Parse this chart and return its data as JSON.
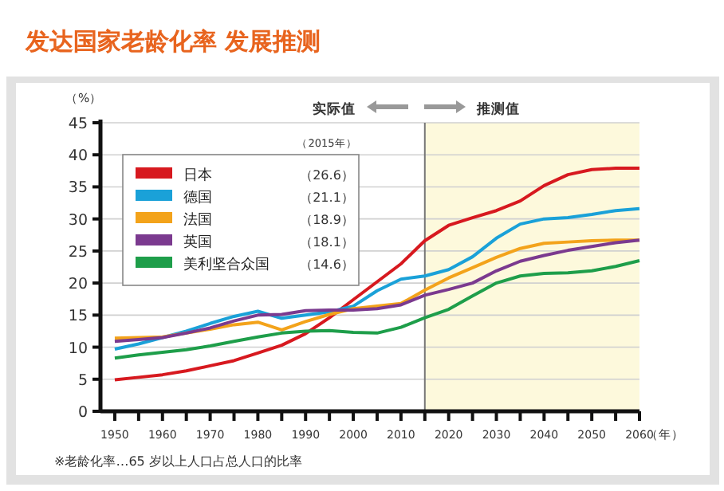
{
  "chart_data": {
    "type": "line",
    "title": "发达国家老龄化率  发展推测",
    "ylabel": "（%）",
    "xlabel": "（年）",
    "legend_title": "（2015年）",
    "x": [
      1950,
      1955,
      1960,
      1965,
      1970,
      1975,
      1980,
      1985,
      1990,
      1995,
      2000,
      2005,
      2010,
      2015,
      2020,
      2025,
      2030,
      2035,
      2040,
      2045,
      2050,
      2055,
      2060
    ],
    "series": [
      {
        "name": "日本",
        "color": "#d7191f",
        "values": [
          4.9,
          5.3,
          5.7,
          6.3,
          7.1,
          7.9,
          9.1,
          10.3,
          12.1,
          14.6,
          17.4,
          20.2,
          23.0,
          26.6,
          29.0,
          30.2,
          31.3,
          32.8,
          35.2,
          36.9,
          37.7,
          37.9,
          37.9
        ]
      },
      {
        "name": "德国",
        "color": "#1aa1d8",
        "values": [
          9.7,
          10.5,
          11.5,
          12.5,
          13.7,
          14.8,
          15.6,
          14.5,
          15.0,
          15.5,
          16.4,
          18.8,
          20.6,
          21.1,
          22.1,
          24.1,
          27.0,
          29.2,
          30.0,
          30.2,
          30.7,
          31.3,
          31.6
        ]
      },
      {
        "name": "法国",
        "color": "#f3a31b",
        "values": [
          11.4,
          11.5,
          11.6,
          12.2,
          12.8,
          13.5,
          13.9,
          12.7,
          14.0,
          15.1,
          16.0,
          16.4,
          16.8,
          18.9,
          20.8,
          22.4,
          24.0,
          25.4,
          26.2,
          26.4,
          26.6,
          26.7,
          26.7
        ]
      },
      {
        "name": "英国",
        "color": "#7b3a8f",
        "values": [
          10.9,
          11.2,
          11.5,
          12.2,
          13.0,
          14.1,
          15.0,
          15.1,
          15.7,
          15.8,
          15.8,
          16.0,
          16.6,
          18.1,
          19.0,
          20.0,
          21.9,
          23.4,
          24.3,
          25.1,
          25.7,
          26.3,
          26.7
        ]
      },
      {
        "name": "美利坚合众国",
        "color": "#1e9e4a",
        "values": [
          8.3,
          8.8,
          9.2,
          9.6,
          10.2,
          10.9,
          11.6,
          12.2,
          12.5,
          12.6,
          12.3,
          12.2,
          13.1,
          14.6,
          15.9,
          18.0,
          20.0,
          21.1,
          21.5,
          21.6,
          21.9,
          22.6,
          23.5
        ]
      }
    ],
    "xlim": [
      1947,
      2060
    ],
    "xticks": [
      1950,
      {
        "value": 1955,
        "label": null
      },
      1960,
      {
        "value": 1965,
        "label": null
      },
      1970,
      {
        "value": 1975,
        "label": null
      },
      1980,
      {
        "value": 1985,
        "label": null
      },
      1990,
      {
        "value": 1995,
        "label": null
      },
      2000,
      {
        "value": 2005,
        "label": null
      },
      2010,
      {
        "value": 2015,
        "label": null
      },
      2020,
      {
        "value": 2025,
        "label": null
      },
      2030,
      {
        "value": 2035,
        "label": null
      },
      2040,
      {
        "value": 2045,
        "label": null
      },
      2050,
      {
        "value": 2055,
        "label": null
      },
      2060
    ],
    "ylim": [
      0,
      45
    ],
    "yticks": [
      0,
      5,
      10,
      15,
      20,
      25,
      30,
      35,
      40,
      45
    ],
    "grid": "y",
    "legend": "top left",
    "marker": "none",
    "line_style": "solid",
    "bands": [
      {
        "axis": "x",
        "from": 2015,
        "to": 2060,
        "color": "#fdf9dc"
      }
    ],
    "ref_lines": [
      {
        "axis": "x",
        "value": 2015,
        "color": "#777777"
      }
    ],
    "annotations": [
      "实际值",
      "推测值",
      "（26.6）",
      "（21.1）",
      "（18.9）",
      "（18.1）",
      "（14.6）",
      "※老龄化率…65 岁以上人口占总人口的比率"
    ]
  }
}
